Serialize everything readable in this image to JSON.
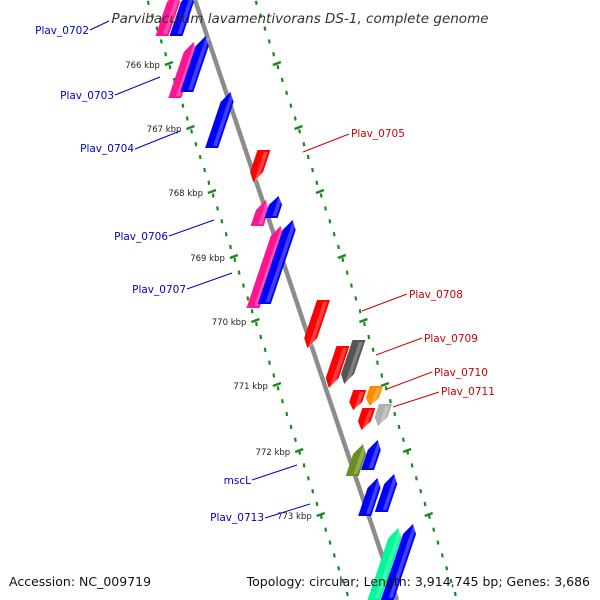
{
  "title": "Parvibaculum lavamentivorans DS-1, complete genome",
  "footer": {
    "accession": "Accession: NC_009719",
    "summary": "Topology: circular; Length: 3,914,745 bp; Genes: 3,686"
  },
  "colors": {
    "backbone": "#8c8c8c",
    "tick": "#1a8a1a",
    "left_label": "#0000cc",
    "right_label": "#cc0000"
  },
  "scale_labels": [
    {
      "text": "766 kbp",
      "pos": 65
    },
    {
      "text": "767 kbp",
      "pos": 129
    },
    {
      "text": "768 kbp",
      "pos": 193
    },
    {
      "text": "769 kbp",
      "pos": 258
    },
    {
      "text": "770 kbp",
      "pos": 322
    },
    {
      "text": "771 kbp",
      "pos": 386
    },
    {
      "text": "772 kbp",
      "pos": 452
    },
    {
      "text": "773 kbp",
      "pos": 516
    }
  ],
  "gene_labels": [
    {
      "text": "Plav_0702",
      "side": "left"
    },
    {
      "text": "Plav_0703",
      "side": "left"
    },
    {
      "text": "Plav_0704",
      "side": "left"
    },
    {
      "text": "Plav_0706",
      "side": "left"
    },
    {
      "text": "Plav_0707",
      "side": "left"
    },
    {
      "text": "mscL",
      "side": "left"
    },
    {
      "text": "Plav_0713",
      "side": "left"
    },
    {
      "text": "Plav_0705",
      "side": "right"
    },
    {
      "text": "Plav_0708",
      "side": "right"
    },
    {
      "text": "Plav_0709",
      "side": "right"
    },
    {
      "text": "Plav_0710",
      "side": "right"
    },
    {
      "text": "Plav_0711",
      "side": "right"
    }
  ],
  "features": [
    {
      "color": "#ff1493",
      "dir": "plus"
    },
    {
      "color": "#0000ff",
      "dir": "plus"
    },
    {
      "color": "#ff1493",
      "dir": "plus"
    },
    {
      "color": "#0000ff",
      "dir": "plus"
    },
    {
      "color": "#0000ff",
      "dir": "plus"
    },
    {
      "color": "#ff0000",
      "dir": "minus"
    },
    {
      "color": "#ff1493",
      "dir": "plus"
    },
    {
      "color": "#0000ff",
      "dir": "plus"
    },
    {
      "color": "#ff1493",
      "dir": "plus"
    },
    {
      "color": "#0000ff",
      "dir": "plus"
    },
    {
      "color": "#ff0000",
      "dir": "minus"
    },
    {
      "color": "#ff0000",
      "dir": "minus"
    },
    {
      "color": "#555555",
      "dir": "minus"
    },
    {
      "color": "#ff0000",
      "dir": "minus"
    },
    {
      "color": "#ff8c00",
      "dir": "minus"
    },
    {
      "color": "#ff0000",
      "dir": "minus"
    },
    {
      "color": "#b0b0b0",
      "dir": "minus"
    },
    {
      "color": "#6b8e23",
      "dir": "plus"
    },
    {
      "color": "#0000ff",
      "dir": "plus"
    },
    {
      "color": "#0000ff",
      "dir": "plus"
    },
    {
      "color": "#0000ff",
      "dir": "plus"
    },
    {
      "color": "#00fa9a",
      "dir": "plus"
    },
    {
      "color": "#0000ff",
      "dir": "plus"
    }
  ]
}
